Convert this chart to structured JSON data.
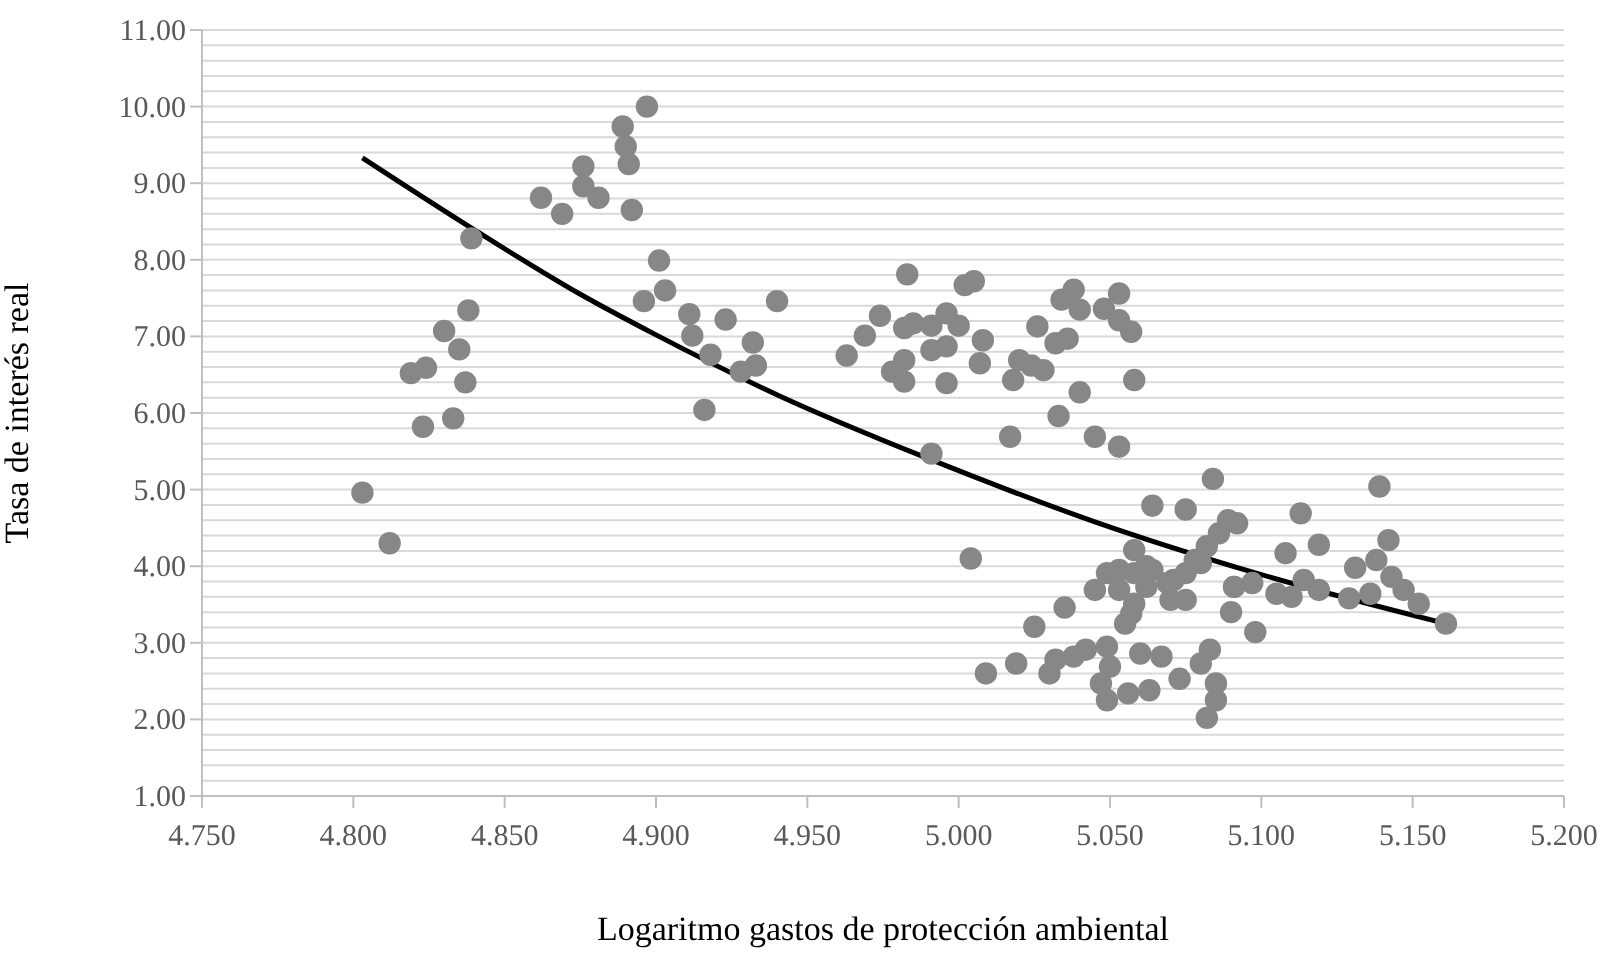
{
  "chart_data": {
    "type": "scatter",
    "xlabel": "Logaritmo gastos de protección ambiental",
    "ylabel": "Tasa de interés real",
    "xlim": [
      4.75,
      5.2
    ],
    "xticks": [
      {
        "value": 4.75,
        "label": "4.750"
      },
      {
        "value": 4.8,
        "label": "4.800"
      },
      {
        "value": 4.85,
        "label": "4.850"
      },
      {
        "value": 4.9,
        "label": "4.900"
      },
      {
        "value": 4.95,
        "label": "4.950"
      },
      {
        "value": 5.0,
        "label": "5.000"
      },
      {
        "value": 5.05,
        "label": "5.050"
      },
      {
        "value": 5.1,
        "label": "5.100"
      },
      {
        "value": 5.15,
        "label": "5.150"
      },
      {
        "value": 5.2,
        "label": "5.200"
      }
    ],
    "ylim": [
      1,
      11
    ],
    "yticks": [
      {
        "value": 1,
        "label": "1.00"
      },
      {
        "value": 1.2,
        "label": null
      },
      {
        "value": 1.4,
        "label": null
      },
      {
        "value": 1.6,
        "label": null
      },
      {
        "value": 1.8,
        "label": null
      },
      {
        "value": 2,
        "label": "2.00"
      },
      {
        "value": 2.2,
        "label": null
      },
      {
        "value": 2.4,
        "label": null
      },
      {
        "value": 2.6,
        "label": null
      },
      {
        "value": 2.8,
        "label": null
      },
      {
        "value": 3,
        "label": "3.00"
      },
      {
        "value": 3.2,
        "label": null
      },
      {
        "value": 3.4,
        "label": null
      },
      {
        "value": 3.6,
        "label": null
      },
      {
        "value": 3.8,
        "label": null
      },
      {
        "value": 4,
        "label": "4.00"
      },
      {
        "value": 4.2,
        "label": null
      },
      {
        "value": 4.4,
        "label": null
      },
      {
        "value": 4.6,
        "label": null
      },
      {
        "value": 4.8,
        "label": null
      },
      {
        "value": 5,
        "label": "5.00"
      },
      {
        "value": 5.2,
        "label": null
      },
      {
        "value": 5.4,
        "label": null
      },
      {
        "value": 5.6,
        "label": null
      },
      {
        "value": 5.8,
        "label": null
      },
      {
        "value": 6,
        "label": "6.00"
      },
      {
        "value": 6.2,
        "label": null
      },
      {
        "value": 6.4,
        "label": null
      },
      {
        "value": 6.6,
        "label": null
      },
      {
        "value": 6.8,
        "label": null
      },
      {
        "value": 7,
        "label": "7.00"
      },
      {
        "value": 7.2,
        "label": null
      },
      {
        "value": 7.4,
        "label": null
      },
      {
        "value": 7.6,
        "label": null
      },
      {
        "value": 7.8,
        "label": null
      },
      {
        "value": 8,
        "label": "8.00"
      },
      {
        "value": 8.2,
        "label": null
      },
      {
        "value": 8.4,
        "label": null
      },
      {
        "value": 8.6,
        "label": null
      },
      {
        "value": 8.8,
        "label": null
      },
      {
        "value": 9,
        "label": "9.00"
      },
      {
        "value": 9.2,
        "label": null
      },
      {
        "value": 9.4,
        "label": null
      },
      {
        "value": 9.6,
        "label": null
      },
      {
        "value": 9.8,
        "label": null
      },
      {
        "value": 10,
        "label": "10.00"
      },
      {
        "value": 10.2,
        "label": null
      },
      {
        "value": 10.4,
        "label": null
      },
      {
        "value": 10.6,
        "label": null
      },
      {
        "value": 10.8,
        "label": null
      },
      {
        "value": 11,
        "label": "11.00"
      }
    ],
    "grid": "y",
    "marker": "circle",
    "legend": false,
    "series": [
      {
        "color": "#878787",
        "x": [
          4.803,
          4.812,
          4.819,
          4.824,
          4.823,
          4.83,
          4.835,
          4.837,
          4.833,
          4.838,
          4.839,
          4.862,
          4.869,
          4.876,
          4.876,
          4.881,
          4.889,
          4.89,
          4.891,
          4.892,
          4.897,
          4.901,
          4.903,
          4.896,
          4.911,
          4.912,
          4.923,
          4.918,
          4.916,
          4.932,
          4.933,
          4.928,
          4.94,
          4.983,
          4.974,
          4.969,
          4.963,
          4.978,
          4.982,
          4.982,
          4.985,
          4.982,
          4.991,
          4.996,
          5.0,
          4.991,
          4.996,
          5.008,
          5.007,
          4.996,
          5.002,
          5.005,
          4.991,
          5.004,
          5.026,
          5.034,
          5.038,
          5.04,
          5.032,
          5.036,
          5.02,
          5.018,
          5.024,
          5.028,
          5.04,
          5.033,
          5.017,
          5.045,
          5.053,
          5.048,
          5.053,
          5.053,
          5.057,
          5.058,
          5.009,
          5.019,
          5.025,
          5.035,
          5.045,
          5.049,
          5.03,
          5.032,
          5.038,
          5.042,
          5.049,
          5.05,
          5.047,
          5.049,
          5.056,
          5.06,
          5.067,
          5.063,
          5.073,
          5.08,
          5.083,
          5.085,
          5.085,
          5.082,
          5.055,
          5.058,
          5.064,
          5.075,
          5.084,
          5.058,
          5.064,
          5.071,
          5.07,
          5.075,
          5.062,
          5.078,
          5.082,
          5.086,
          5.089,
          5.092,
          5.091,
          5.091,
          5.09,
          5.097,
          5.098,
          5.113,
          5.119,
          5.139,
          5.142,
          5.108,
          5.131,
          5.138,
          5.143,
          5.147,
          5.152,
          5.161,
          5.136,
          5.129,
          5.119,
          5.114,
          5.11,
          5.105,
          5.057,
          5.053,
          5.053,
          5.058,
          5.062,
          5.069,
          5.075,
          5.08
        ],
        "values": [
          4.96,
          4.3,
          6.52,
          6.59,
          5.82,
          7.07,
          6.83,
          6.4,
          5.93,
          7.34,
          8.28,
          8.81,
          8.6,
          9.22,
          8.96,
          8.81,
          9.74,
          9.48,
          9.25,
          8.65,
          10.0,
          7.99,
          7.6,
          7.46,
          7.29,
          7.01,
          7.22,
          6.76,
          6.04,
          6.92,
          6.62,
          6.54,
          7.46,
          7.81,
          7.27,
          7.01,
          6.75,
          6.54,
          6.41,
          7.11,
          7.17,
          6.69,
          7.14,
          7.3,
          7.14,
          6.82,
          6.87,
          6.95,
          6.65,
          6.39,
          7.67,
          7.72,
          5.47,
          4.1,
          7.13,
          7.48,
          7.61,
          7.35,
          6.91,
          6.97,
          6.69,
          6.43,
          6.62,
          6.56,
          6.27,
          5.96,
          5.69,
          5.69,
          5.56,
          7.36,
          7.56,
          7.21,
          7.06,
          6.43,
          2.6,
          2.73,
          3.21,
          3.46,
          3.69,
          3.91,
          2.6,
          2.78,
          2.82,
          2.91,
          2.95,
          2.69,
          2.47,
          2.25,
          2.34,
          2.86,
          2.82,
          2.38,
          2.53,
          2.73,
          2.91,
          2.47,
          2.25,
          2.02,
          3.25,
          3.51,
          4.79,
          4.74,
          5.14,
          4.21,
          3.95,
          3.82,
          3.56,
          3.56,
          3.73,
          4.08,
          4.26,
          4.43,
          4.6,
          4.56,
          3.73,
          3.73,
          3.4,
          3.78,
          3.14,
          4.69,
          4.28,
          5.04,
          4.34,
          4.17,
          3.98,
          4.08,
          3.86,
          3.69,
          3.51,
          3.25,
          3.64,
          3.58,
          3.69,
          3.82,
          3.6,
          3.64,
          3.38,
          3.69,
          3.95,
          3.91,
          4.0,
          3.78,
          3.91,
          4.04
        ]
      },
      {
        "type": "line",
        "color": "#000000",
        "marker": "none",
        "line_style": "solid",
        "x": [
          4.803,
          4.84,
          4.875,
          4.9,
          4.941,
          4.989,
          5.045,
          5.1,
          5.161
        ],
        "values": [
          9.33,
          8.39,
          7.55,
          7.02,
          6.22,
          5.42,
          4.58,
          3.89,
          3.25
        ]
      }
    ]
  }
}
